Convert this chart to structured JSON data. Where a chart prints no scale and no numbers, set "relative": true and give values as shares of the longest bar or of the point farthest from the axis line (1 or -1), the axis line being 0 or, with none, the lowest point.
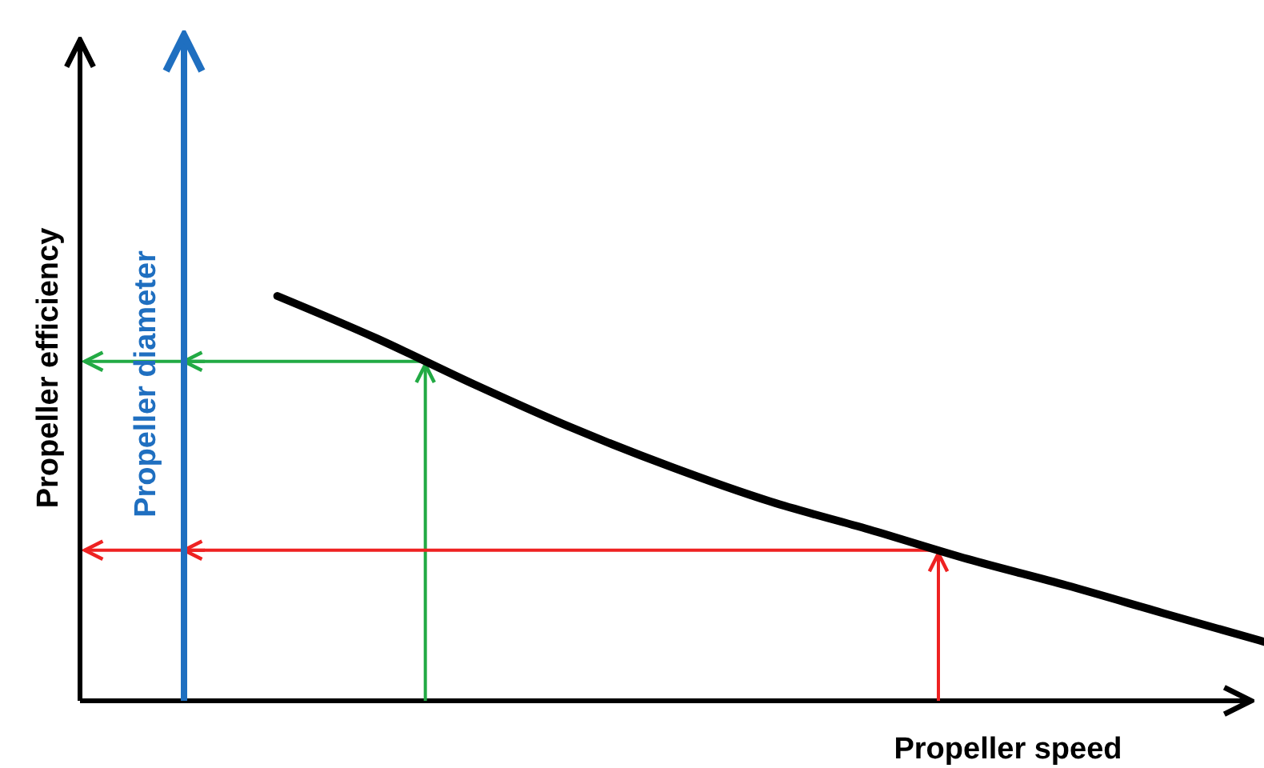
{
  "chart_data": {
    "type": "line",
    "relative": true,
    "xlabel": "Propeller speed",
    "ylabel": "Propeller efficiency",
    "y2label": "Propeller diameter",
    "categories": [
      null,
      null,
      null,
      null,
      null,
      null,
      null,
      null,
      null,
      null,
      null,
      null,
      null
    ],
    "series": [
      {
        "color": "#000000",
        "values": [
          null,
          null,
          1,
          0.896,
          0.781,
          0.673,
          0.577,
          0.492,
          0.423,
          0.35,
          0.285,
          0.215,
          0.146
        ]
      }
    ],
    "marker": "none",
    "line_style": "solid"
  }
}
